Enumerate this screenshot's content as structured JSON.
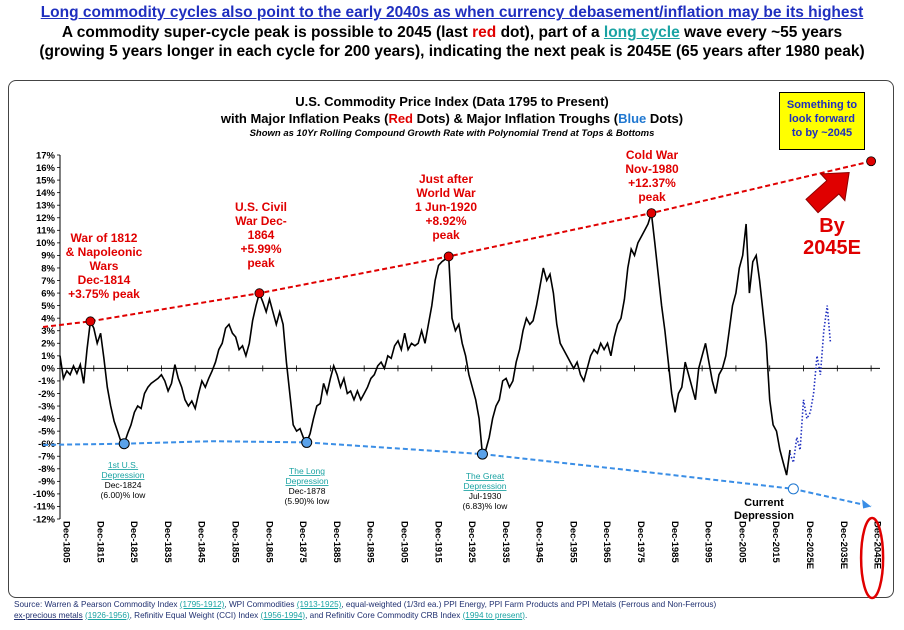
{
  "headline": {
    "line1": "Long commodity cycles also point to the early 2040s as when currency debasement/inflation may be its highest",
    "line2_a": "A commodity super-cycle peak is possible to 2045 (last ",
    "line2_red": "red",
    "line2_b": " dot), part of a ",
    "line2_link": "long cycle",
    "line2_c": "  wave every ~55 years",
    "line3": "(growing 5 years longer in each cycle for 200 years), indicating the next peak is 2045E (65 years after 1980 peak)"
  },
  "callout": "Something to\nlook forward\nto by ~2045",
  "source": {
    "t1": "Source: Warren & Pearson Commodity Index ",
    "l1": "(1795-1912)",
    "t2": ", WPI Commodities ",
    "l2": "(1913-1925)",
    "t3": ", equal-weighted (1/3rd ea.) PPI Energy, PPI Farm Products and PPI Metals (Ferrous and Non-Ferrous)",
    "t4": "ex-precious metals",
    "l3": "(1926-1956)",
    "t5": ", Refinitiv Equal Weight (CCI) Index ",
    "l4": "(1956-1994)",
    "t6": ", and Refinitiv Core Commodity CRB Index ",
    "l5": "(1994 to present)",
    "t7": "."
  },
  "chart_data": {
    "type": "line",
    "title": "U.S. Commodity Price Index (Data 1795 to Present)",
    "subtitle_parts": [
      "with Major Inflation Peaks (",
      "Red",
      " Dots) & Major Inflation Troughs (",
      "Blue",
      " Dots)"
    ],
    "note": "Shown as 10Yr Rolling Compound Growth Rate with Polynomial Trend  at Tops & Bottoms",
    "y_ticks": [
      "17%",
      "16%",
      "15%",
      "14%",
      "13%",
      "12%",
      "11%",
      "10%",
      "9%",
      "8%",
      "7%",
      "6%",
      "5%",
      "4%",
      "3%",
      "2%",
      "1%",
      "0%",
      "-1%",
      "-2%",
      "-3%",
      "-4%",
      "-5%",
      "-6%",
      "-7%",
      "-8%",
      "-9%",
      "-10%",
      "-11%",
      "-12%"
    ],
    "ylim": [
      -12,
      17
    ],
    "xlim": [
      1805,
      2050
    ],
    "x_ticks": [
      "Dec-1805",
      "Dec-1815",
      "Dec-1825",
      "Dec-1835",
      "Dec-1845",
      "Dec-1855",
      "Dec-1865",
      "Dec-1875",
      "Dec-1885",
      "Dec-1895",
      "Dec-1905",
      "Dec-1915",
      "Dec-1925",
      "Dec-1935",
      "Dec-1945",
      "Dec-1955",
      "Dec-1965",
      "Dec-1975",
      "Dec-1985",
      "Dec-1995",
      "Dec-2005",
      "Dec-2015",
      "Dec-2025E",
      "Dec-2035E",
      "Dec-2045E"
    ],
    "colors": {
      "series": "#000000",
      "peaks": "#e00000",
      "troughs": "#1f77d0",
      "trend_peaks": "#e00000",
      "trend_troughs": "#3a8ee6",
      "projection": "#1f2fbf"
    },
    "series": [
      {
        "values": [
          [
            1805,
            1.0
          ],
          [
            1806,
            -0.8
          ],
          [
            1807,
            -0.2
          ],
          [
            1808,
            -0.5
          ],
          [
            1809,
            0.2
          ],
          [
            1810,
            -0.4
          ],
          [
            1811,
            0.3
          ],
          [
            1812,
            -1.2
          ],
          [
            1813,
            1.5
          ],
          [
            1814,
            3.75
          ],
          [
            1815,
            3.2
          ],
          [
            1816,
            2.0
          ],
          [
            1817,
            2.8
          ],
          [
            1818,
            0.8
          ],
          [
            1819,
            -1.5
          ],
          [
            1820,
            -3.0
          ],
          [
            1821,
            -4.2
          ],
          [
            1822,
            -5.0
          ],
          [
            1823,
            -5.8
          ],
          [
            1824,
            -6.0
          ],
          [
            1825,
            -5.2
          ],
          [
            1826,
            -4.5
          ],
          [
            1827,
            -3.5
          ],
          [
            1828,
            -3.0
          ],
          [
            1829,
            -3.2
          ],
          [
            1830,
            -2.0
          ],
          [
            1831,
            -1.5
          ],
          [
            1832,
            -1.2
          ],
          [
            1833,
            -1.0
          ],
          [
            1834,
            -0.8
          ],
          [
            1835,
            -0.5
          ],
          [
            1836,
            -1.0
          ],
          [
            1837,
            -1.8
          ],
          [
            1838,
            -1.2
          ],
          [
            1839,
            0.3
          ],
          [
            1840,
            -0.8
          ],
          [
            1841,
            -1.5
          ],
          [
            1842,
            -2.5
          ],
          [
            1843,
            -3.0
          ],
          [
            1844,
            -2.6
          ],
          [
            1845,
            -3.2
          ],
          [
            1846,
            -2.0
          ],
          [
            1847,
            -1.0
          ],
          [
            1848,
            -1.5
          ],
          [
            1849,
            -0.8
          ],
          [
            1850,
            -0.2
          ],
          [
            1851,
            0.5
          ],
          [
            1852,
            1.5
          ],
          [
            1853,
            2.0
          ],
          [
            1854,
            3.2
          ],
          [
            1855,
            3.5
          ],
          [
            1856,
            2.8
          ],
          [
            1857,
            2.5
          ],
          [
            1858,
            1.5
          ],
          [
            1859,
            1.8
          ],
          [
            1860,
            1.0
          ],
          [
            1861,
            2.0
          ],
          [
            1862,
            3.8
          ],
          [
            1863,
            5.0
          ],
          [
            1864,
            5.99
          ],
          [
            1865,
            5.3
          ],
          [
            1866,
            4.5
          ],
          [
            1867,
            5.5
          ],
          [
            1868,
            4.5
          ],
          [
            1869,
            3.5
          ],
          [
            1870,
            4.5
          ],
          [
            1871,
            3.5
          ],
          [
            1872,
            0.5
          ],
          [
            1873,
            -2.0
          ],
          [
            1874,
            -4.5
          ],
          [
            1875,
            -5.0
          ],
          [
            1876,
            -4.8
          ],
          [
            1877,
            -5.5
          ],
          [
            1878,
            -5.9
          ],
          [
            1879,
            -5.2
          ],
          [
            1880,
            -4.0
          ],
          [
            1881,
            -3.0
          ],
          [
            1882,
            -2.8
          ],
          [
            1883,
            -1.2
          ],
          [
            1884,
            -2.0
          ],
          [
            1885,
            -0.8
          ],
          [
            1886,
            0.2
          ],
          [
            1887,
            -0.5
          ],
          [
            1888,
            -1.5
          ],
          [
            1889,
            -0.8
          ],
          [
            1890,
            -2.0
          ],
          [
            1891,
            -1.8
          ],
          [
            1892,
            -2.5
          ],
          [
            1893,
            -1.8
          ],
          [
            1894,
            -2.5
          ],
          [
            1895,
            -2.0
          ],
          [
            1896,
            -1.5
          ],
          [
            1897,
            -0.8
          ],
          [
            1898,
            -0.5
          ],
          [
            1899,
            0.2
          ],
          [
            1900,
            0.5
          ],
          [
            1901,
            0.0
          ],
          [
            1902,
            1.0
          ],
          [
            1903,
            0.8
          ],
          [
            1904,
            1.8
          ],
          [
            1905,
            2.2
          ],
          [
            1906,
            1.5
          ],
          [
            1907,
            2.8
          ],
          [
            1908,
            1.5
          ],
          [
            1909,
            2.0
          ],
          [
            1910,
            1.8
          ],
          [
            1911,
            2.0
          ],
          [
            1912,
            3.0
          ],
          [
            1913,
            2.0
          ],
          [
            1914,
            3.5
          ],
          [
            1915,
            5.0
          ],
          [
            1916,
            7.0
          ],
          [
            1917,
            8.2
          ],
          [
            1918,
            8.5
          ],
          [
            1919,
            8.7
          ],
          [
            1920,
            8.92
          ],
          [
            1921,
            4.0
          ],
          [
            1922,
            3.0
          ],
          [
            1923,
            3.5
          ],
          [
            1924,
            2.0
          ],
          [
            1925,
            1.0
          ],
          [
            1926,
            -0.5
          ],
          [
            1927,
            -1.5
          ],
          [
            1928,
            -2.5
          ],
          [
            1929,
            -4.0
          ],
          [
            1930,
            -6.83
          ],
          [
            1931,
            -6.5
          ],
          [
            1932,
            -5.5
          ],
          [
            1933,
            -4.0
          ],
          [
            1934,
            -3.0
          ],
          [
            1935,
            -2.5
          ],
          [
            1936,
            -1.0
          ],
          [
            1937,
            -0.8
          ],
          [
            1938,
            -1.5
          ],
          [
            1939,
            -1.0
          ],
          [
            1940,
            0.5
          ],
          [
            1941,
            1.5
          ],
          [
            1942,
            3.0
          ],
          [
            1943,
            4.0
          ],
          [
            1944,
            3.5
          ],
          [
            1945,
            3.8
          ],
          [
            1946,
            5.0
          ],
          [
            1947,
            6.5
          ],
          [
            1948,
            8.0
          ],
          [
            1949,
            7.0
          ],
          [
            1950,
            7.5
          ],
          [
            1951,
            6.0
          ],
          [
            1952,
            3.5
          ],
          [
            1953,
            2.0
          ],
          [
            1954,
            1.5
          ],
          [
            1955,
            1.0
          ],
          [
            1956,
            0.5
          ],
          [
            1957,
            0.0
          ],
          [
            1958,
            0.5
          ],
          [
            1959,
            -0.5
          ],
          [
            1960,
            -1.0
          ],
          [
            1961,
            0.0
          ],
          [
            1962,
            1.0
          ],
          [
            1963,
            1.5
          ],
          [
            1964,
            1.2
          ],
          [
            1965,
            2.0
          ],
          [
            1966,
            1.5
          ],
          [
            1967,
            2.0
          ],
          [
            1968,
            1.0
          ],
          [
            1969,
            2.5
          ],
          [
            1970,
            3.5
          ],
          [
            1971,
            4.0
          ],
          [
            1972,
            5.5
          ],
          [
            1973,
            8.0
          ],
          [
            1974,
            9.5
          ],
          [
            1975,
            9.0
          ],
          [
            1976,
            10.0
          ],
          [
            1977,
            10.5
          ],
          [
            1978,
            11.0
          ],
          [
            1979,
            11.5
          ],
          [
            1980,
            12.37
          ],
          [
            1981,
            10.0
          ],
          [
            1982,
            7.5
          ],
          [
            1983,
            5.0
          ],
          [
            1984,
            3.0
          ],
          [
            1985,
            0.5
          ],
          [
            1986,
            -2.0
          ],
          [
            1987,
            -3.5
          ],
          [
            1988,
            -2.0
          ],
          [
            1989,
            -1.5
          ],
          [
            1990,
            0.5
          ],
          [
            1991,
            -0.5
          ],
          [
            1992,
            -1.5
          ],
          [
            1993,
            -2.5
          ],
          [
            1994,
            0.0
          ],
          [
            1995,
            1.0
          ],
          [
            1996,
            2.0
          ],
          [
            1997,
            0.5
          ],
          [
            1998,
            -1.0
          ],
          [
            1999,
            -2.0
          ],
          [
            2000,
            -0.5
          ],
          [
            2001,
            0.0
          ],
          [
            2002,
            1.0
          ],
          [
            2003,
            3.0
          ],
          [
            2004,
            5.0
          ],
          [
            2005,
            6.0
          ],
          [
            2006,
            8.0
          ],
          [
            2007,
            9.0
          ],
          [
            2008,
            11.5
          ],
          [
            2009,
            6.0
          ],
          [
            2010,
            8.5
          ],
          [
            2011,
            9.0
          ],
          [
            2012,
            7.0
          ],
          [
            2013,
            4.5
          ],
          [
            2014,
            2.0
          ],
          [
            2015,
            -2.5
          ],
          [
            2016,
            -4.5
          ],
          [
            2017,
            -5.0
          ],
          [
            2018,
            -6.5
          ],
          [
            2019,
            -7.5
          ],
          [
            2020,
            -8.5
          ],
          [
            2021,
            -6.5
          ]
        ]
      }
    ],
    "projection": [
      [
        2021,
        -6.8
      ],
      [
        2022,
        -7.5
      ],
      [
        2023,
        -5.5
      ],
      [
        2024,
        -6.5
      ],
      [
        2025,
        -2.5
      ],
      [
        2026,
        -4.0
      ],
      [
        2027,
        -3.5
      ],
      [
        2028,
        -2.0
      ],
      [
        2029,
        1.0
      ],
      [
        2030,
        -0.5
      ],
      [
        2031,
        3.0
      ],
      [
        2032,
        5.0
      ],
      [
        2033,
        2.0
      ]
    ],
    "peaks": [
      {
        "x": 1814,
        "y": 3.75,
        "label": "War of 1812\n& Napoleonic\nWars\nDec-1814\n+3.75% peak"
      },
      {
        "x": 1864,
        "y": 5.99,
        "label": "U.S. Civil\nWar Dec-\n1864\n+5.99%\npeak"
      },
      {
        "x": 1920,
        "y": 8.92,
        "label": "Just after\nWorld War\n1 Jun-1920\n+8.92%\npeak"
      },
      {
        "x": 1980,
        "y": 12.37,
        "label": "Cold War\nNov-1980\n+12.37%\npeak"
      },
      {
        "x": 2045,
        "y": 16.5,
        "label": ""
      }
    ],
    "troughs": [
      {
        "x": 1824,
        "y": -6.0,
        "label_link": "1st U.S.\nDepression",
        "label": "Dec-1824\n(6.00)% low"
      },
      {
        "x": 1878,
        "y": -5.9,
        "label_link": "The Long\nDepression",
        "label": "Dec-1878\n(5.90)% low"
      },
      {
        "x": 1930,
        "y": -6.83,
        "label_link": "The Great\nDepression",
        "label": "Jul-1930\n(6.83)% low"
      },
      {
        "x": 2022,
        "y": -9.6,
        "label_link": "",
        "label": "Current\nDepression"
      }
    ],
    "trend_peaks": [
      [
        1800,
        3.3
      ],
      [
        1814,
        3.75
      ],
      [
        1864,
        5.99
      ],
      [
        1920,
        8.92
      ],
      [
        1980,
        12.37
      ],
      [
        2045,
        16.5
      ]
    ],
    "trend_troughs": [
      [
        1800,
        -6.1
      ],
      [
        1824,
        -6.0
      ],
      [
        1850,
        -5.8
      ],
      [
        1878,
        -5.9
      ],
      [
        1930,
        -6.83
      ],
      [
        1980,
        -8.3
      ],
      [
        2022,
        -9.6
      ],
      [
        2045,
        -11.0
      ]
    ],
    "big_label": "By\n2045E"
  }
}
